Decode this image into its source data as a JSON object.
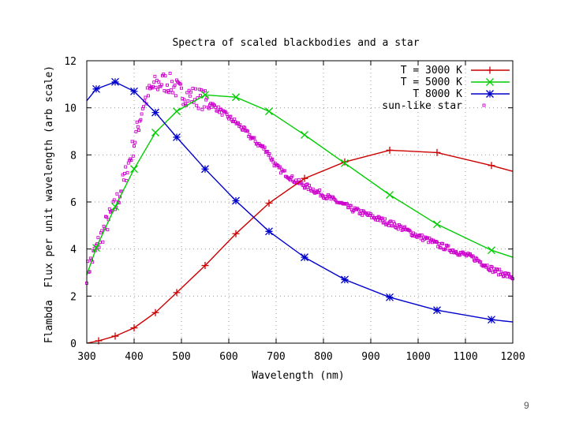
{
  "page": {
    "number": "9"
  },
  "chart_data": {
    "type": "line",
    "title": "Spectra of scaled blackbodies and a star",
    "xlabel": "Wavelength (nm)",
    "ylabel": "Flambda  Flux per unit wavelength (arb scale)",
    "xlim": [
      300,
      1200
    ],
    "ylim": [
      0,
      12
    ],
    "xticks": [
      300,
      400,
      500,
      600,
      700,
      800,
      900,
      1000,
      1100,
      1200
    ],
    "yticks": [
      0,
      2,
      4,
      6,
      8,
      10,
      12
    ],
    "grid": true,
    "legend_position": "top-right",
    "series": [
      {
        "name": "T = 3000 K",
        "color": "#cc0000",
        "marker": "+",
        "x": [
          300,
          325,
          360,
          400,
          445,
          490,
          550,
          615,
          685,
          760,
          845,
          940,
          1040,
          1155,
          1200
        ],
        "y": [
          0,
          0.1,
          0.3,
          0.65,
          1.3,
          2.15,
          3.3,
          4.65,
          5.95,
          7.0,
          7.7,
          8.2,
          8.1,
          7.55,
          7.3
        ]
      },
      {
        "name": "T = 5000 K",
        "color": "#00cc00",
        "marker": "x",
        "x": [
          300,
          320,
          360,
          400,
          445,
          490,
          550,
          615,
          685,
          760,
          845,
          940,
          1040,
          1155,
          1200
        ],
        "y": [
          2.9,
          4.05,
          5.8,
          7.4,
          8.95,
          9.85,
          10.55,
          10.45,
          9.85,
          8.85,
          7.65,
          6.3,
          5.05,
          3.95,
          3.65
        ]
      },
      {
        "name": "T   8000 K",
        "color": "#0000cc",
        "marker": "*",
        "x": [
          300,
          320,
          360,
          400,
          445,
          490,
          550,
          615,
          685,
          760,
          845,
          940,
          1040,
          1155,
          1200
        ],
        "y": [
          10.3,
          10.8,
          11.1,
          10.7,
          9.8,
          8.75,
          7.4,
          6.05,
          4.75,
          3.65,
          2.7,
          1.95,
          1.4,
          1.0,
          0.9
        ]
      }
    ],
    "star_series": {
      "name": "sun-like star",
      "color": "#cc00cc",
      "marker": "square-dot",
      "x": [
        300,
        320,
        340,
        360,
        380,
        400,
        420,
        440,
        460,
        480,
        500,
        520,
        540,
        560,
        580,
        600,
        620,
        640,
        660,
        680,
        700,
        720,
        740,
        760,
        780,
        800,
        820,
        840,
        860,
        880,
        900,
        920,
        940,
        960,
        980,
        1000,
        1020,
        1040,
        1060,
        1080,
        1100,
        1120,
        1140,
        1160,
        1180,
        1200
      ],
      "y": [
        3.0,
        4.0,
        5.0,
        5.8,
        7.0,
        8.5,
        10.2,
        10.9,
        11.1,
        11.0,
        10.6,
        10.5,
        10.4,
        10.2,
        9.9,
        9.6,
        9.3,
        8.9,
        8.5,
        8.2,
        7.5,
        7.2,
        6.9,
        6.7,
        6.5,
        6.3,
        6.1,
        5.9,
        5.7,
        5.55,
        5.4,
        5.25,
        5.1,
        4.95,
        4.75,
        4.55,
        4.4,
        4.2,
        4.05,
        3.9,
        3.75,
        3.6,
        3.35,
        3.1,
        2.95,
        2.8
      ]
    }
  }
}
